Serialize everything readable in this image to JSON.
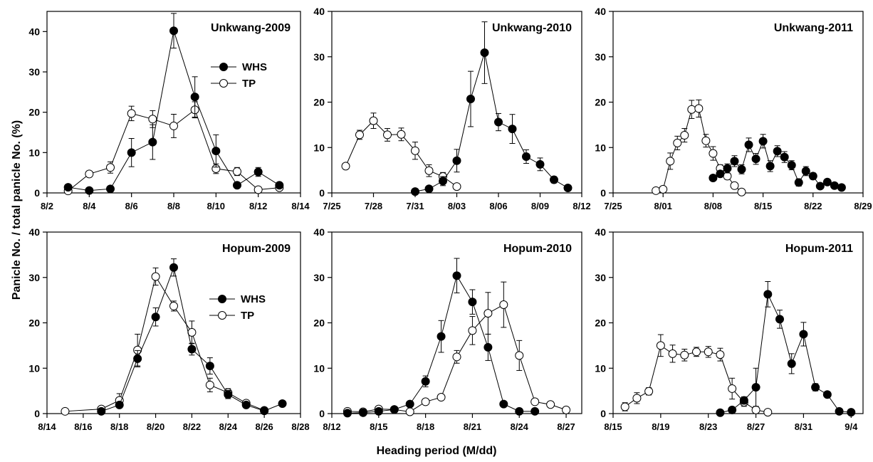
{
  "figure": {
    "ylabel": "Panicle No. / total panicle No. (%)",
    "xlabel": "Heading period (M/dd)"
  },
  "chart_data": [
    {
      "type": "line",
      "title": "Unkwang-2009",
      "ylim": [
        0,
        45
      ],
      "yticks": [
        0,
        10,
        20,
        30,
        40
      ],
      "xlim": [
        "8/2",
        "8/14"
      ],
      "xticks": [
        "8/2",
        "8/4",
        "8/6",
        "8/8",
        "8/10",
        "8/12",
        "8/14"
      ],
      "legend": {
        "position": "top-right",
        "entries": [
          "WHS",
          "TP"
        ]
      },
      "series": [
        {
          "name": "WHS",
          "marker": "filled-circle",
          "x": [
            "8/3",
            "8/4",
            "8/5",
            "8/6",
            "8/7",
            "8/8",
            "8/9",
            "8/10",
            "8/11",
            "8/12",
            "8/13"
          ],
          "y": [
            1.4,
            0.6,
            1.0,
            10.0,
            12.6,
            40.2,
            23.8,
            10.4,
            1.9,
            5.2,
            1.9
          ],
          "err": [
            0.3,
            0.2,
            0.3,
            3.5,
            4.3,
            4.3,
            5.0,
            4.0,
            0.5,
            1.1,
            0.4
          ]
        },
        {
          "name": "TP",
          "marker": "open-circle",
          "x": [
            "8/3",
            "8/4",
            "8/5",
            "8/6",
            "8/7",
            "8/8",
            "8/9",
            "8/10",
            "8/11",
            "8/12",
            "8/13"
          ],
          "y": [
            0.5,
            4.7,
            6.3,
            19.7,
            18.3,
            16.6,
            20.6,
            6.0,
            5.3,
            0.8,
            1.3
          ],
          "err": [
            0.2,
            0.5,
            1.4,
            1.8,
            2.1,
            2.9,
            2.0,
            1.2,
            1.0,
            0.2,
            0.3
          ]
        }
      ]
    },
    {
      "type": "line",
      "title": "Unkwang-2010",
      "ylim": [
        0,
        40
      ],
      "yticks": [
        0,
        10,
        20,
        30,
        40
      ],
      "xlim": [
        "7/25",
        "8/12"
      ],
      "xticks": [
        "7/25",
        "7/28",
        "7/31",
        "8/03",
        "8/06",
        "8/09",
        "8/12"
      ],
      "series": [
        {
          "name": "WHS",
          "marker": "filled-circle",
          "x": [
            "7/31",
            "8/01",
            "8/02",
            "8/03",
            "8/04",
            "8/05",
            "8/06",
            "8/07",
            "8/08",
            "8/09",
            "8/10",
            "8/11"
          ],
          "y": [
            0.3,
            0.9,
            2.6,
            7.1,
            20.7,
            30.9,
            15.6,
            14.1,
            8.0,
            6.3,
            2.9,
            1.1
          ],
          "err": [
            0.1,
            0.3,
            1.0,
            2.5,
            6.1,
            6.8,
            1.9,
            3.2,
            1.5,
            1.4,
            0.7,
            0.3
          ]
        },
        {
          "name": "TP",
          "marker": "open-circle",
          "x": [
            "7/26",
            "7/27",
            "7/28",
            "7/29",
            "7/30",
            "7/31",
            "8/01",
            "8/02",
            "8/03"
          ],
          "y": [
            5.9,
            12.8,
            15.9,
            12.8,
            12.9,
            9.3,
            4.9,
            3.6,
            1.4
          ],
          "err": [
            0.4,
            1.0,
            1.7,
            1.4,
            1.4,
            1.9,
            1.3,
            0.9,
            0.3
          ]
        }
      ]
    },
    {
      "type": "line",
      "title": "Unkwang-2011",
      "ylim": [
        0,
        40
      ],
      "yticks": [
        0,
        10,
        20,
        30,
        40
      ],
      "xlim": [
        "7/25",
        "8/29"
      ],
      "xticks": [
        "7/25",
        "8/01",
        "8/08",
        "8/15",
        "8/22",
        "8/29"
      ],
      "series": [
        {
          "name": "WHS",
          "marker": "filled-circle",
          "x": [
            "8/08",
            "8/09",
            "8/10",
            "8/11",
            "8/12",
            "8/13",
            "8/14",
            "8/15",
            "8/16",
            "8/17",
            "8/18",
            "8/19",
            "8/20",
            "8/21",
            "8/22",
            "8/23",
            "8/24",
            "8/25",
            "8/26"
          ],
          "y": [
            3.3,
            4.2,
            5.4,
            7.0,
            5.2,
            10.6,
            7.5,
            11.4,
            5.9,
            9.2,
            7.9,
            6.1,
            2.3,
            4.8,
            3.7,
            1.5,
            2.4,
            1.6,
            1.2
          ],
          "err": [
            0.6,
            0.6,
            1.0,
            1.2,
            1.0,
            1.5,
            1.2,
            1.5,
            1.2,
            1.2,
            1.2,
            1.0,
            0.8,
            1.0,
            0.7,
            0.4,
            0.5,
            0.4,
            0.3
          ]
        },
        {
          "name": "TP",
          "marker": "open-circle",
          "x": [
            "7/31",
            "8/01",
            "8/02",
            "8/03",
            "8/04",
            "8/05",
            "8/06",
            "8/07",
            "8/08",
            "8/09",
            "8/10",
            "8/11",
            "8/12"
          ],
          "y": [
            0.5,
            0.8,
            7.0,
            11.0,
            12.7,
            18.4,
            18.6,
            11.5,
            8.7,
            5.4,
            3.7,
            1.6,
            0.2
          ],
          "err": [
            0.1,
            0.2,
            1.8,
            1.5,
            1.5,
            2.0,
            1.9,
            1.4,
            1.5,
            0.8,
            0.7,
            0.4,
            0.1
          ]
        }
      ]
    },
    {
      "type": "line",
      "title": "Hopum-2009",
      "ylim": [
        0,
        40
      ],
      "yticks": [
        0,
        10,
        20,
        30,
        40
      ],
      "xlim": [
        "8/14",
        "8/28"
      ],
      "xticks": [
        "8/14",
        "8/16",
        "8/18",
        "8/20",
        "8/22",
        "8/24",
        "8/26",
        "8/28"
      ],
      "legend": {
        "position": "center-right",
        "entries": [
          "WHS",
          "TP"
        ]
      },
      "series": [
        {
          "name": "WHS",
          "marker": "filled-circle",
          "x": [
            "8/17",
            "8/18",
            "8/19",
            "8/20",
            "8/21",
            "8/22",
            "8/23",
            "8/24",
            "8/25",
            "8/26",
            "8/27"
          ],
          "y": [
            0.5,
            1.9,
            12.1,
            21.3,
            32.2,
            14.2,
            10.5,
            4.2,
            1.9,
            0.6,
            2.2
          ],
          "err": [
            0.2,
            0.6,
            1.8,
            2.0,
            1.9,
            1.3,
            1.8,
            0.9,
            0.4,
            0.2,
            0.4
          ]
        },
        {
          "name": "TP",
          "marker": "open-circle",
          "x": [
            "8/15",
            "8/17",
            "8/18",
            "8/19",
            "8/20",
            "8/21",
            "8/22",
            "8/23",
            "8/24",
            "8/25",
            "8/26"
          ],
          "y": [
            0.5,
            1.0,
            2.9,
            14.0,
            30.2,
            23.7,
            17.9,
            6.3,
            4.6,
            2.3,
            0.7
          ],
          "err": [
            0.1,
            0.3,
            1.5,
            3.5,
            1.9,
            1.1,
            2.5,
            1.5,
            0.9,
            0.4,
            0.2
          ]
        }
      ]
    },
    {
      "type": "line",
      "title": "Hopum-2010",
      "ylim": [
        0,
        40
      ],
      "yticks": [
        0,
        10,
        20,
        30,
        40
      ],
      "xlim": [
        "8/12",
        "8/28"
      ],
      "xticks": [
        "8/12",
        "8/15",
        "8/18",
        "8/21",
        "8/24",
        "8/27"
      ],
      "series": [
        {
          "name": "WHS",
          "marker": "filled-circle",
          "x": [
            "8/13",
            "8/14",
            "8/15",
            "8/16",
            "8/17",
            "8/18",
            "8/19",
            "8/20",
            "8/21",
            "8/22",
            "8/23",
            "8/24",
            "8/25"
          ],
          "y": [
            0.1,
            0.2,
            0.5,
            0.9,
            2.1,
            7.1,
            17.0,
            30.4,
            24.6,
            14.6,
            2.1,
            0.5,
            0.5
          ],
          "err": [
            0.0,
            0.1,
            0.1,
            0.2,
            0.5,
            1.2,
            3.5,
            3.8,
            2.7,
            2.9,
            0.5,
            0.2,
            0.2
          ]
        },
        {
          "name": "TP",
          "marker": "open-circle",
          "x": [
            "8/13",
            "8/14",
            "8/15",
            "8/16",
            "8/17",
            "8/18",
            "8/19",
            "8/20",
            "8/21",
            "8/22",
            "8/23",
            "8/24",
            "8/25",
            "8/26",
            "8/27"
          ],
          "y": [
            0.5,
            0.4,
            1.0,
            0.9,
            0.4,
            2.6,
            3.6,
            12.5,
            18.3,
            22.1,
            24.0,
            12.8,
            2.6,
            2.0,
            0.8
          ],
          "err": [
            0.1,
            0.1,
            0.2,
            0.2,
            0.1,
            0.5,
            0.5,
            1.4,
            3.1,
            4.6,
            5.0,
            3.3,
            0.5,
            0.4,
            0.2
          ]
        }
      ]
    },
    {
      "type": "line",
      "title": "Hopum-2011",
      "ylim": [
        0,
        40
      ],
      "yticks": [
        0,
        10,
        20,
        30,
        40
      ],
      "xlim": [
        "8/15",
        "9/05"
      ],
      "xticks": [
        "8/15",
        "8/19",
        "8/23",
        "8/27",
        "8/31",
        "9/4"
      ],
      "series": [
        {
          "name": "WHS",
          "marker": "filled-circle",
          "x": [
            "8/24",
            "8/25",
            "8/26",
            "8/27",
            "8/28",
            "8/29",
            "8/30",
            "8/31",
            "9/01",
            "9/02",
            "9/03",
            "9/04"
          ],
          "y": [
            0.2,
            0.8,
            2.9,
            5.8,
            26.3,
            20.8,
            11.0,
            17.5,
            5.8,
            4.2,
            0.5,
            0.3
          ],
          "err": [
            0.0,
            0.2,
            0.8,
            4.2,
            2.8,
            2.0,
            2.2,
            2.6,
            0.8,
            0.6,
            0.2,
            0.1
          ]
        },
        {
          "name": "TP",
          "marker": "open-circle",
          "x": [
            "8/16",
            "8/17",
            "8/18",
            "8/19",
            "8/20",
            "8/21",
            "8/22",
            "8/23",
            "8/24",
            "8/25",
            "8/26",
            "8/27",
            "8/28"
          ],
          "y": [
            1.5,
            3.4,
            4.9,
            15.0,
            13.2,
            12.9,
            13.6,
            13.6,
            13.0,
            5.5,
            2.5,
            0.8,
            0.3
          ],
          "err": [
            0.9,
            1.2,
            0.8,
            2.4,
            1.9,
            1.3,
            1.0,
            1.2,
            1.4,
            2.3,
            0.9,
            0.3,
            0.1
          ]
        }
      ]
    }
  ]
}
